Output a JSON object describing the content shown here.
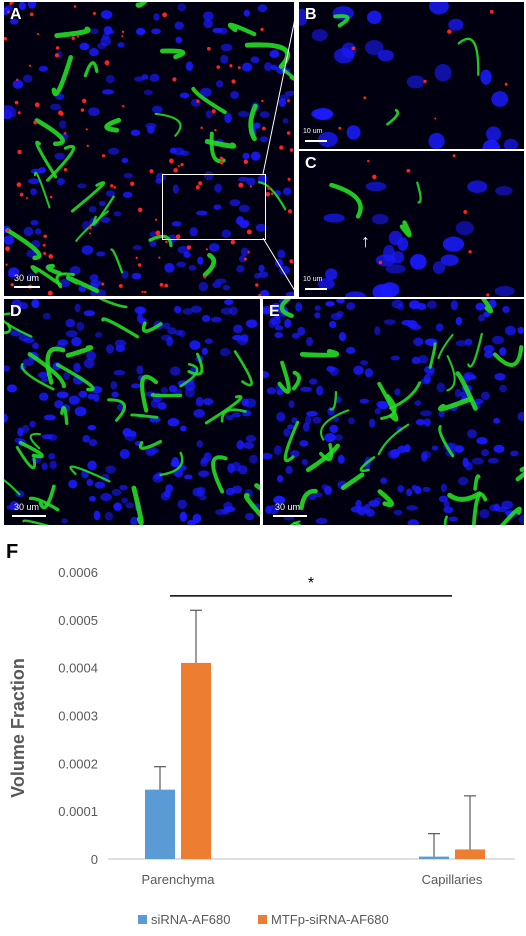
{
  "panels": {
    "A": {
      "label": "A",
      "scale": "30 um"
    },
    "B": {
      "label": "B",
      "scale": "10 um"
    },
    "C": {
      "label": "C",
      "scale": "10 um"
    },
    "D": {
      "label": "D",
      "scale": "30 um"
    },
    "E": {
      "label": "E",
      "scale": "30 um"
    }
  },
  "colors": {
    "nuclei": "#1a1aff",
    "vessels": "#22dd22",
    "sirna": "#ff2222",
    "series1": "#5b9bd5",
    "series2": "#ed7d31",
    "axis": "#bfbfbf",
    "text": "#595959"
  },
  "chart_data": {
    "type": "bar",
    "panel_label": "F",
    "categories": [
      "Parenchyma",
      "Capillaries"
    ],
    "series": [
      {
        "name": "siRNA-AF680",
        "values": [
          0.000145,
          5e-06
        ],
        "errors": [
          4.8e-05,
          4.8e-05
        ],
        "color": "#5b9bd5"
      },
      {
        "name": "MTFp-siRNA-AF680",
        "values": [
          0.00041,
          2e-05
        ],
        "errors": [
          0.00011,
          0.000112
        ],
        "color": "#ed7d31"
      }
    ],
    "ylabel": "Volume Fraction",
    "xlabel": "",
    "ylim": [
      0,
      0.0006
    ],
    "yticks": [
      "0",
      "0.0001",
      "0.0002",
      "0.0003",
      "0.0004",
      "0.0005",
      "0.0006"
    ],
    "significance": "*",
    "legend_position": "bottom",
    "grid": false
  }
}
